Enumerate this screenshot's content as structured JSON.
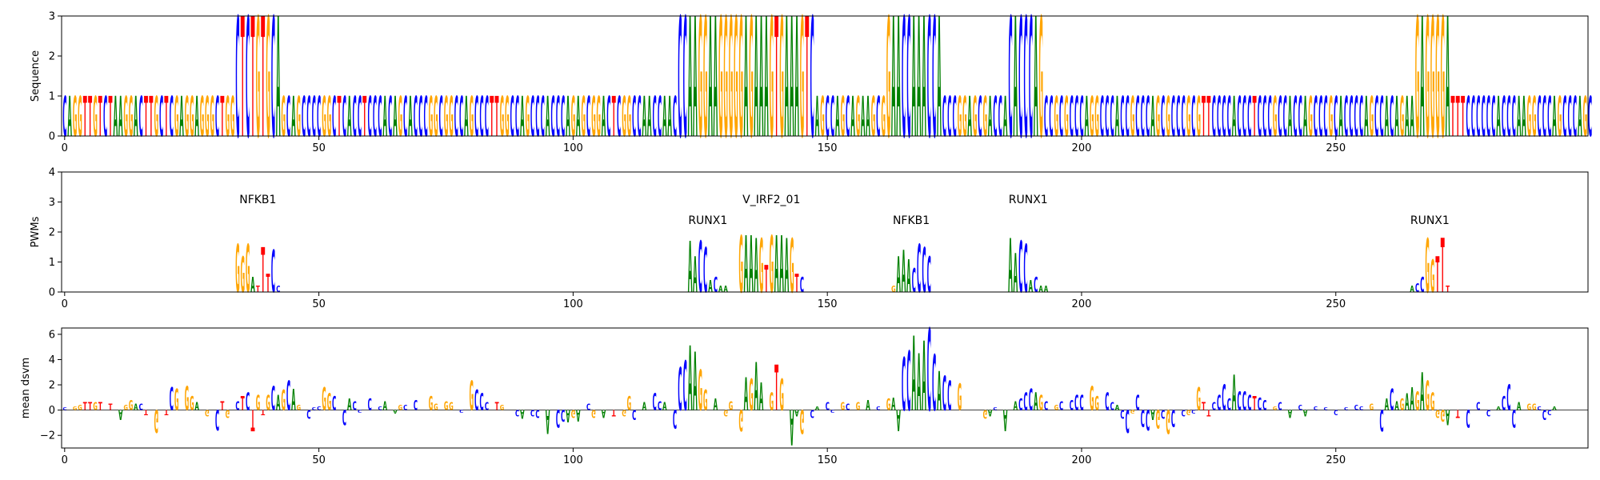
{
  "colors": {
    "A": "#008000",
    "C": "#0000ff",
    "G": "#ffa500",
    "T": "#ff0000"
  },
  "chart_data": [
    {
      "type": "sequence-logo",
      "ylabel": "Sequence",
      "xlim": [
        0,
        300
      ],
      "ylim": [
        0,
        3
      ],
      "xticks": [
        "0",
        "50",
        "100",
        "150",
        "200",
        "250"
      ],
      "yticks": [
        "0",
        "1",
        "2",
        "3"
      ],
      "sequence": "CAGGTTGTCTAAGGACTTGCTCGAGGAGGGCTGGCTCTGTGCAGCAGCCCCGGCTCACCTCCCACAGCACCCGGCGGCCAGCCCTTGGCCAGCCCACCCAGAGCGGACTCGGCCAACCAACCCAAGGAAGGGGGAGAAAGTGAAAGTCAGCCAGCAGAAGCGGAACCAAACCACCCGGAGCGACCACACCCAGCCGCGCCCAGGCCCACCGCCCAGCGCCCGCGTTCCCCACCCTCCCGCCACCAGCCCGCACCCCAGCCACAGAAGAGGGGATTTCCCCCCACCCAAGGCCCAGCCCAGC",
      "heights": [
        {
          "start": 0,
          "end": 33,
          "value": 1.0
        },
        {
          "start": 34,
          "end": 42,
          "value": 3.0
        },
        {
          "start": 43,
          "end": 120,
          "value": 1.0
        },
        {
          "start": 121,
          "end": 147,
          "value": 3.0
        },
        {
          "start": 148,
          "end": 161,
          "value": 1.0
        },
        {
          "start": 162,
          "end": 172,
          "value": 3.0
        },
        {
          "start": 173,
          "end": 185,
          "value": 1.0
        },
        {
          "start": 186,
          "end": 192,
          "value": 3.0
        },
        {
          "start": 193,
          "end": 265,
          "value": 1.0
        },
        {
          "start": 266,
          "end": 272,
          "value": 3.0
        },
        {
          "start": 273,
          "end": 299,
          "value": 1.0
        }
      ]
    },
    {
      "type": "sequence-logo",
      "ylabel": "PWMs",
      "xlim": [
        0,
        300
      ],
      "ylim": [
        0,
        4
      ],
      "xticks": [
        "0",
        "50",
        "100",
        "150",
        "200",
        "250"
      ],
      "yticks": [
        "0",
        "1",
        "2",
        "3",
        "4"
      ],
      "motifs": [
        {
          "name": "NFKB1",
          "start": 34,
          "letters": "GGGATTTCC",
          "heights": [
            1.6,
            1.2,
            1.6,
            0.5,
            0.2,
            1.5,
            0.6,
            1.4,
            0.2
          ],
          "label_y": 3.1
        },
        {
          "name": "RUNX1",
          "start": 123,
          "letters": "AACCACAA",
          "heights": [
            1.7,
            1.2,
            1.7,
            1.5,
            0.4,
            0.5,
            0.2,
            0.2
          ],
          "label_y": 2.4
        },
        {
          "name": "V_IRF2_01",
          "start": 133,
          "letters": "GAAAGTGAAAGTC",
          "heights": [
            1.9,
            1.9,
            1.9,
            1.8,
            1.8,
            0.9,
            1.9,
            1.9,
            1.9,
            1.8,
            1.8,
            0.6,
            0.5
          ],
          "label_y": 3.1
        },
        {
          "name": "NFKB1",
          "start": 163,
          "letters": "GAAACCCC",
          "heights": [
            0.2,
            1.2,
            1.4,
            1.1,
            0.8,
            1.6,
            1.5,
            1.2
          ],
          "label_y": 2.4
        },
        {
          "name": "RUNX1",
          "start": 186,
          "letters": "AACCACAA",
          "heights": [
            1.8,
            1.3,
            1.7,
            1.6,
            0.4,
            0.5,
            0.2,
            0.2
          ],
          "label_y": 3.1
        },
        {
          "name": "RUNX1",
          "start": 265,
          "letters": "ACCGGTTT",
          "heights": [
            0.2,
            0.3,
            0.5,
            1.8,
            1.1,
            1.2,
            1.8,
            0.2
          ],
          "label_y": 2.4
        }
      ]
    },
    {
      "type": "sequence-logo",
      "ylabel": "mean dsvm",
      "xlim": [
        0,
        300
      ],
      "ylim": [
        -3,
        6.5
      ],
      "xticks": [
        "0",
        "50",
        "100",
        "150",
        "200",
        "250"
      ],
      "yticks": [
        "−2",
        "0",
        "2",
        "4",
        "6"
      ],
      "values": [
        {
          "x": 0,
          "v": 0.2
        },
        {
          "x": 2,
          "v": 0.3
        },
        {
          "x": 3,
          "v": 0.4
        },
        {
          "x": 4,
          "v": 0.6
        },
        {
          "x": 5,
          "v": 0.6
        },
        {
          "x": 6,
          "v": 0.6
        },
        {
          "x": 7,
          "v": 0.6
        },
        {
          "x": 9,
          "v": 0.5
        },
        {
          "x": 11,
          "v": -0.8
        },
        {
          "x": 12,
          "v": 0.4
        },
        {
          "x": 13,
          "v": 0.8
        },
        {
          "x": 14,
          "v": 0.5
        },
        {
          "x": 15,
          "v": 0.5
        },
        {
          "x": 16,
          "v": -0.4
        },
        {
          "x": 18,
          "v": -1.8
        },
        {
          "x": 20,
          "v": -0.4
        },
        {
          "x": 21,
          "v": 1.8
        },
        {
          "x": 22,
          "v": 1.7
        },
        {
          "x": 24,
          "v": 1.9
        },
        {
          "x": 25,
          "v": 1.1
        },
        {
          "x": 26,
          "v": 0.6
        },
        {
          "x": 28,
          "v": -0.5
        },
        {
          "x": 30,
          "v": -1.6
        },
        {
          "x": 31,
          "v": 0.7
        },
        {
          "x": 32,
          "v": -0.6
        },
        {
          "x": 34,
          "v": 0.7
        },
        {
          "x": 35,
          "v": 1.1
        },
        {
          "x": 36,
          "v": 1.4
        },
        {
          "x": 37,
          "v": -1.7
        },
        {
          "x": 38,
          "v": 1.2
        },
        {
          "x": 39,
          "v": -0.4
        },
        {
          "x": 40,
          "v": 1.2
        },
        {
          "x": 41,
          "v": 1.9
        },
        {
          "x": 42,
          "v": 1.2
        },
        {
          "x": 43,
          "v": 1.6
        },
        {
          "x": 44,
          "v": 2.3
        },
        {
          "x": 45,
          "v": 1.7
        },
        {
          "x": 46,
          "v": 0.4
        },
        {
          "x": 48,
          "v": -0.7
        },
        {
          "x": 49,
          "v": 0.2
        },
        {
          "x": 50,
          "v": 0.3
        },
        {
          "x": 51,
          "v": 1.8
        },
        {
          "x": 52,
          "v": 1.3
        },
        {
          "x": 53,
          "v": 1.1
        },
        {
          "x": 55,
          "v": -1.2
        },
        {
          "x": 56,
          "v": 0.9
        },
        {
          "x": 57,
          "v": 0.7
        },
        {
          "x": 58,
          "v": -0.2
        },
        {
          "x": 60,
          "v": 0.9
        },
        {
          "x": 62,
          "v": 0.3
        },
        {
          "x": 63,
          "v": 0.7
        },
        {
          "x": 65,
          "v": -0.3
        },
        {
          "x": 66,
          "v": 0.4
        },
        {
          "x": 67,
          "v": 0.4
        },
        {
          "x": 69,
          "v": 0.8
        },
        {
          "x": 72,
          "v": 1.1
        },
        {
          "x": 73,
          "v": 0.5
        },
        {
          "x": 75,
          "v": 0.7
        },
        {
          "x": 76,
          "v": 0.6
        },
        {
          "x": 78,
          "v": -0.2
        },
        {
          "x": 80,
          "v": 2.3
        },
        {
          "x": 81,
          "v": 1.6
        },
        {
          "x": 82,
          "v": 1.3
        },
        {
          "x": 83,
          "v": 0.6
        },
        {
          "x": 85,
          "v": 0.6
        },
        {
          "x": 86,
          "v": 0.4
        },
        {
          "x": 89,
          "v": -0.5
        },
        {
          "x": 90,
          "v": -0.7
        },
        {
          "x": 92,
          "v": -0.5
        },
        {
          "x": 93,
          "v": -0.6
        },
        {
          "x": 95,
          "v": -1.9
        },
        {
          "x": 97,
          "v": -1.4
        },
        {
          "x": 98,
          "v": -0.9
        },
        {
          "x": 99,
          "v": -1.0
        },
        {
          "x": 100,
          "v": -0.6
        },
        {
          "x": 101,
          "v": -0.9
        },
        {
          "x": 103,
          "v": 0.5
        },
        {
          "x": 104,
          "v": -0.6
        },
        {
          "x": 106,
          "v": -0.6
        },
        {
          "x": 108,
          "v": -0.5
        },
        {
          "x": 110,
          "v": -0.5
        },
        {
          "x": 111,
          "v": 1.1
        },
        {
          "x": 112,
          "v": -0.8
        },
        {
          "x": 114,
          "v": 0.6
        },
        {
          "x": 116,
          "v": 1.3
        },
        {
          "x": 117,
          "v": 0.7
        },
        {
          "x": 118,
          "v": 0.6
        },
        {
          "x": 120,
          "v": -1.5
        },
        {
          "x": 121,
          "v": 3.4
        },
        {
          "x": 122,
          "v": 3.9
        },
        {
          "x": 123,
          "v": 5.1
        },
        {
          "x": 124,
          "v": 4.6
        },
        {
          "x": 125,
          "v": 3.2
        },
        {
          "x": 126,
          "v": 1.6
        },
        {
          "x": 128,
          "v": 0.9
        },
        {
          "x": 130,
          "v": -0.5
        },
        {
          "x": 131,
          "v": 0.7
        },
        {
          "x": 133,
          "v": -1.7
        },
        {
          "x": 134,
          "v": 2.6
        },
        {
          "x": 135,
          "v": 2.5
        },
        {
          "x": 136,
          "v": 3.8
        },
        {
          "x": 137,
          "v": 2.2
        },
        {
          "x": 139,
          "v": 1.4
        },
        {
          "x": 140,
          "v": 3.6
        },
        {
          "x": 141,
          "v": 2.5
        },
        {
          "x": 143,
          "v": -2.8
        },
        {
          "x": 144,
          "v": -0.5
        },
        {
          "x": 145,
          "v": -1.9
        },
        {
          "x": 147,
          "v": -0.6
        },
        {
          "x": 148,
          "v": 0.3
        },
        {
          "x": 150,
          "v": 0.6
        },
        {
          "x": 151,
          "v": -0.2
        },
        {
          "x": 153,
          "v": 0.6
        },
        {
          "x": 154,
          "v": 0.5
        },
        {
          "x": 156,
          "v": 0.6
        },
        {
          "x": 158,
          "v": 0.8
        },
        {
          "x": 160,
          "v": 0.3
        },
        {
          "x": 162,
          "v": 0.9
        },
        {
          "x": 163,
          "v": 1.0
        },
        {
          "x": 164,
          "v": -1.7
        },
        {
          "x": 165,
          "v": 4.2
        },
        {
          "x": 166,
          "v": 4.7
        },
        {
          "x": 167,
          "v": 5.9
        },
        {
          "x": 168,
          "v": 4.5
        },
        {
          "x": 169,
          "v": 5.5
        },
        {
          "x": 170,
          "v": 6.5
        },
        {
          "x": 171,
          "v": 4.4
        },
        {
          "x": 172,
          "v": 3.1
        },
        {
          "x": 173,
          "v": 2.7
        },
        {
          "x": 174,
          "v": 2.3
        },
        {
          "x": 176,
          "v": 2.1
        },
        {
          "x": 181,
          "v": -0.7
        },
        {
          "x": 182,
          "v": -0.5
        },
        {
          "x": 183,
          "v": 0.2
        },
        {
          "x": 185,
          "v": -1.7
        },
        {
          "x": 187,
          "v": 0.7
        },
        {
          "x": 188,
          "v": 0.9
        },
        {
          "x": 189,
          "v": 1.4
        },
        {
          "x": 190,
          "v": 1.7
        },
        {
          "x": 191,
          "v": 1.4
        },
        {
          "x": 192,
          "v": 1.2
        },
        {
          "x": 193,
          "v": 0.7
        },
        {
          "x": 195,
          "v": 0.4
        },
        {
          "x": 196,
          "v": 0.7
        },
        {
          "x": 198,
          "v": 0.8
        },
        {
          "x": 199,
          "v": 1.2
        },
        {
          "x": 200,
          "v": 1.2
        },
        {
          "x": 202,
          "v": 1.9
        },
        {
          "x": 203,
          "v": 1.1
        },
        {
          "x": 205,
          "v": 1.4
        },
        {
          "x": 206,
          "v": 0.6
        },
        {
          "x": 207,
          "v": 0.4
        },
        {
          "x": 208,
          "v": -0.7
        },
        {
          "x": 209,
          "v": -1.8
        },
        {
          "x": 210,
          "v": -0.3
        },
        {
          "x": 211,
          "v": 1.2
        },
        {
          "x": 212,
          "v": -1.3
        },
        {
          "x": 213,
          "v": -1.6
        },
        {
          "x": 214,
          "v": -0.8
        },
        {
          "x": 215,
          "v": -1.5
        },
        {
          "x": 216,
          "v": -0.7
        },
        {
          "x": 217,
          "v": -1.9
        },
        {
          "x": 218,
          "v": -1.3
        },
        {
          "x": 220,
          "v": -0.5
        },
        {
          "x": 221,
          "v": -0.4
        },
        {
          "x": 222,
          "v": -0.3
        },
        {
          "x": 223,
          "v": 1.8
        },
        {
          "x": 224,
          "v": 0.6
        },
        {
          "x": 225,
          "v": -0.5
        },
        {
          "x": 226,
          "v": 0.6
        },
        {
          "x": 227,
          "v": 1.2
        },
        {
          "x": 228,
          "v": 2.0
        },
        {
          "x": 229,
          "v": 0.9
        },
        {
          "x": 230,
          "v": 2.8
        },
        {
          "x": 231,
          "v": 1.5
        },
        {
          "x": 232,
          "v": 1.5
        },
        {
          "x": 233,
          "v": 1.2
        },
        {
          "x": 234,
          "v": 1.1
        },
        {
          "x": 235,
          "v": 1.0
        },
        {
          "x": 236,
          "v": 0.8
        },
        {
          "x": 238,
          "v": 0.3
        },
        {
          "x": 239,
          "v": 0.6
        },
        {
          "x": 241,
          "v": -0.6
        },
        {
          "x": 243,
          "v": 0.4
        },
        {
          "x": 244,
          "v": -0.5
        },
        {
          "x": 246,
          "v": 0.3
        },
        {
          "x": 248,
          "v": 0.2
        },
        {
          "x": 250,
          "v": -0.4
        },
        {
          "x": 252,
          "v": 0.2
        },
        {
          "x": 254,
          "v": 0.4
        },
        {
          "x": 255,
          "v": 0.3
        },
        {
          "x": 257,
          "v": 0.5
        },
        {
          "x": 259,
          "v": -1.7
        },
        {
          "x": 260,
          "v": 0.9
        },
        {
          "x": 261,
          "v": 1.7
        },
        {
          "x": 262,
          "v": 0.7
        },
        {
          "x": 263,
          "v": 0.9
        },
        {
          "x": 264,
          "v": 1.3
        },
        {
          "x": 265,
          "v": 1.8
        },
        {
          "x": 266,
          "v": 1.5
        },
        {
          "x": 267,
          "v": 3.0
        },
        {
          "x": 268,
          "v": 2.3
        },
        {
          "x": 269,
          "v": 1.4
        },
        {
          "x": 270,
          "v": -0.6
        },
        {
          "x": 271,
          "v": -0.9
        },
        {
          "x": 272,
          "v": -1.2
        },
        {
          "x": 274,
          "v": -0.6
        },
        {
          "x": 276,
          "v": -1.4
        },
        {
          "x": 278,
          "v": 0.6
        },
        {
          "x": 280,
          "v": -0.5
        },
        {
          "x": 282,
          "v": 0.3
        },
        {
          "x": 283,
          "v": 1.1
        },
        {
          "x": 284,
          "v": 2.0
        },
        {
          "x": 285,
          "v": -1.4
        },
        {
          "x": 286,
          "v": 0.6
        },
        {
          "x": 288,
          "v": 0.5
        },
        {
          "x": 289,
          "v": 0.5
        },
        {
          "x": 290,
          "v": 0.3
        },
        {
          "x": 291,
          "v": -0.8
        },
        {
          "x": 292,
          "v": -0.4
        },
        {
          "x": 293,
          "v": 0.3
        }
      ]
    }
  ]
}
